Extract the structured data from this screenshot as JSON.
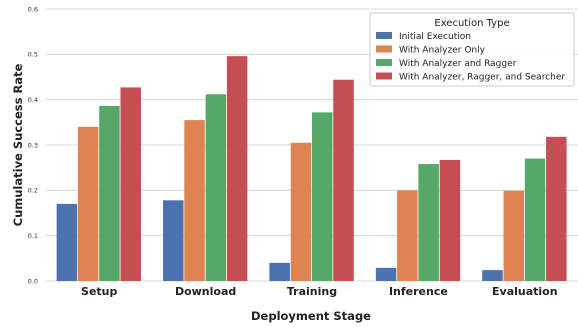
{
  "chart_data": {
    "type": "bar",
    "title": "",
    "xlabel": "Deployment Stage",
    "ylabel": "Cumulative Success Rate",
    "ylim": [
      0,
      0.6
    ],
    "yticks": [
      "0.0",
      "0.1",
      "0.2",
      "0.3",
      "0.4",
      "0.5",
      "0.6"
    ],
    "grid": "horizontal",
    "legend_title": "Execution Type",
    "legend_position": "top-right",
    "categories": [
      "Setup",
      "Download",
      "Training",
      "Inference",
      "Evaluation"
    ],
    "series": [
      {
        "name": "Initial Execution",
        "color": "#4c72b0",
        "values": [
          0.17,
          0.178,
          0.04,
          0.029,
          0.024
        ]
      },
      {
        "name": "With Analyzer Only",
        "color": "#dd8452",
        "values": [
          0.34,
          0.355,
          0.305,
          0.2,
          0.199
        ]
      },
      {
        "name": "With Analyzer and Ragger",
        "color": "#55a868",
        "values": [
          0.386,
          0.412,
          0.372,
          0.258,
          0.27
        ]
      },
      {
        "name": "With Analyzer, Ragger, and Searcher",
        "color": "#c44e52",
        "values": [
          0.427,
          0.496,
          0.444,
          0.267,
          0.318
        ]
      }
    ]
  }
}
